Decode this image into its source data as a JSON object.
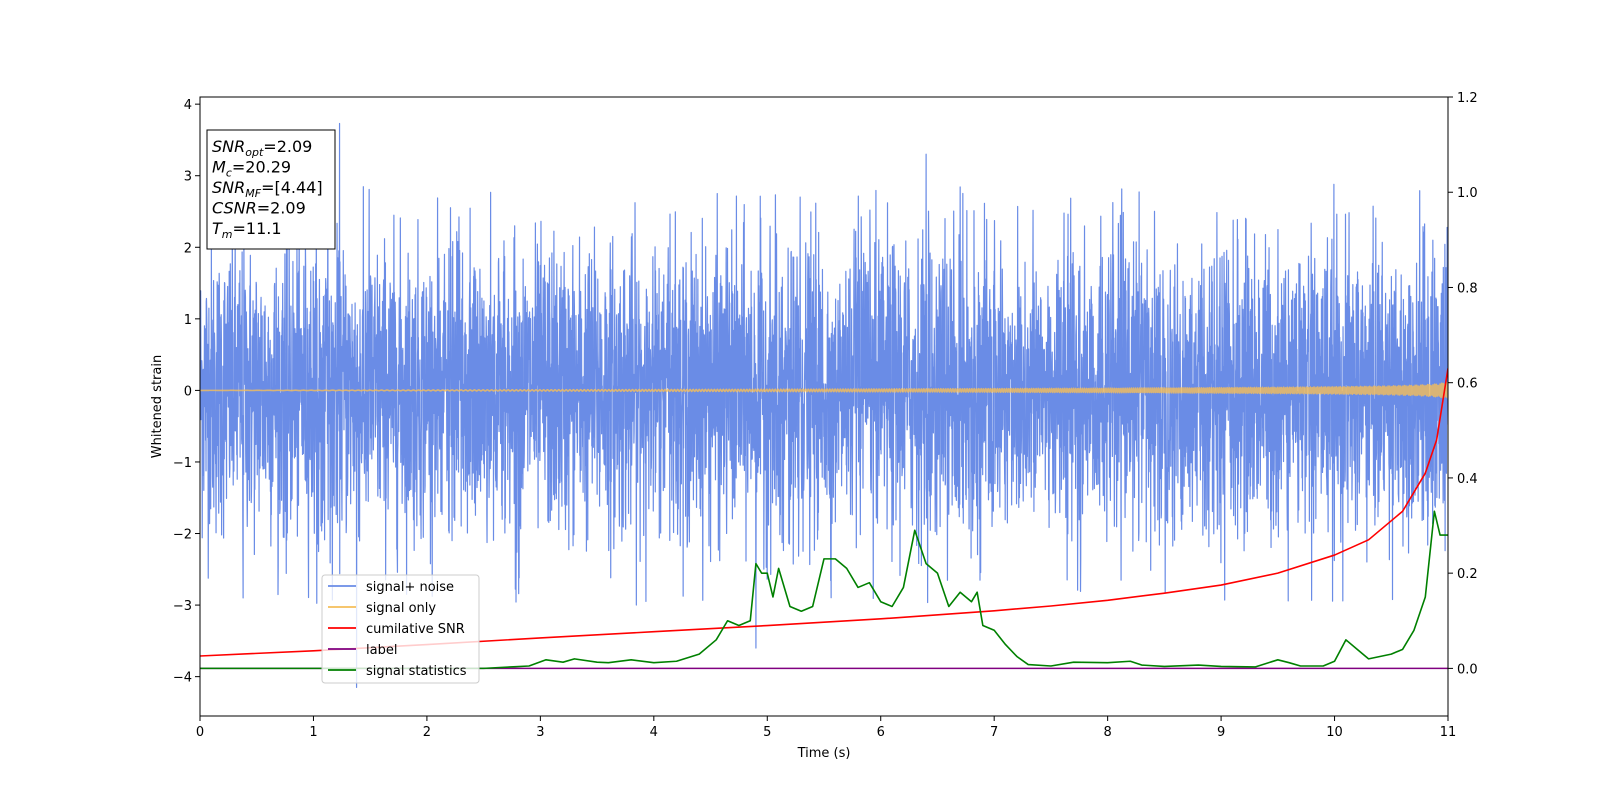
{
  "chart_data": {
    "type": "line",
    "xlabel": "Time (s)",
    "ylabel": "Whitened strain",
    "xlim": [
      0,
      11
    ],
    "ylim": [
      -4.55,
      4.1
    ],
    "y2lim": [
      -0.1,
      1.2
    ],
    "xticks": [
      "0",
      "1",
      "2",
      "3",
      "4",
      "5",
      "6",
      "7",
      "8",
      "9",
      "10",
      "11"
    ],
    "yticks": [
      "−4",
      "−3",
      "−2",
      "−1",
      "0",
      "1",
      "2",
      "3",
      "4"
    ],
    "y2ticks": [
      "0.0",
      "0.2",
      "0.4",
      "0.6",
      "0.8",
      "1.0",
      "1.2"
    ],
    "grid": false,
    "legend_position": "lower-left",
    "annotation": {
      "lines": [
        {
          "sym": "SNR",
          "sub": "opt",
          "value": "=2.09"
        },
        {
          "sym": "M",
          "sub": "c",
          "value": "=20.29"
        },
        {
          "sym": "SNR",
          "sub": "MF",
          "value": "=[4.44]"
        },
        {
          "sym": "CSNR",
          "sub": "",
          "value": "=2.09"
        },
        {
          "sym": "T",
          "sub": "m",
          "value": "=11.1"
        }
      ]
    },
    "series": [
      {
        "name": "signal+ noise",
        "axis": "left",
        "color": "#6a8ce6",
        "kind": "noise",
        "amplitude_sigma": 1.0,
        "extremes": [
          [
            1.23,
            3.73
          ],
          [
            6.4,
            3.3
          ],
          [
            1.38,
            -4.15
          ],
          [
            0.38,
            -2.9
          ],
          [
            4.9,
            -3.6
          ]
        ]
      },
      {
        "name": "signal only",
        "axis": "left",
        "color": "#f5be5a",
        "kind": "chirp",
        "amplitude_at_end": 0.12
      },
      {
        "name": "cumilative SNR",
        "axis": "right",
        "color": "#ff0000",
        "x": [
          0,
          1,
          2,
          3,
          4,
          5,
          6,
          7,
          7.5,
          8,
          8.5,
          9,
          9.5,
          10,
          10.3,
          10.6,
          10.8,
          10.9,
          11
        ],
        "y": [
          0.026,
          0.037,
          0.05,
          0.064,
          0.077,
          0.09,
          0.104,
          0.121,
          0.131,
          0.143,
          0.158,
          0.175,
          0.2,
          0.238,
          0.27,
          0.33,
          0.41,
          0.48,
          0.63
        ]
      },
      {
        "name": "label",
        "axis": "right",
        "color": "#800080",
        "x": [
          0,
          11
        ],
        "y": [
          0.0,
          0.0
        ]
      },
      {
        "name": "signal statistics",
        "axis": "right",
        "color": "#008000",
        "x": [
          0,
          1,
          2,
          2.5,
          2.9,
          3.05,
          3.2,
          3.3,
          3.5,
          3.6,
          3.8,
          4.0,
          4.2,
          4.4,
          4.55,
          4.65,
          4.75,
          4.8,
          4.85,
          4.9,
          4.95,
          5.0,
          5.05,
          5.1,
          5.2,
          5.3,
          5.4,
          5.5,
          5.6,
          5.7,
          5.8,
          5.9,
          6.0,
          6.1,
          6.2,
          6.3,
          6.4,
          6.5,
          6.6,
          6.7,
          6.8,
          6.85,
          6.9,
          7.0,
          7.1,
          7.2,
          7.3,
          7.5,
          7.7,
          8.0,
          8.2,
          8.3,
          8.5,
          8.8,
          9.0,
          9.3,
          9.5,
          9.6,
          9.7,
          9.9,
          10.0,
          10.1,
          10.2,
          10.3,
          10.5,
          10.6,
          10.7,
          10.8,
          10.88,
          10.93,
          11.0
        ],
        "y": [
          0.0,
          0.0,
          0.0,
          0.0,
          0.005,
          0.018,
          0.013,
          0.02,
          0.013,
          0.012,
          0.018,
          0.012,
          0.015,
          0.03,
          0.06,
          0.1,
          0.09,
          0.095,
          0.1,
          0.22,
          0.2,
          0.2,
          0.15,
          0.21,
          0.13,
          0.12,
          0.13,
          0.23,
          0.23,
          0.21,
          0.17,
          0.18,
          0.14,
          0.13,
          0.17,
          0.29,
          0.22,
          0.2,
          0.13,
          0.16,
          0.14,
          0.16,
          0.09,
          0.08,
          0.05,
          0.025,
          0.008,
          0.005,
          0.013,
          0.012,
          0.015,
          0.007,
          0.004,
          0.007,
          0.004,
          0.003,
          0.018,
          0.012,
          0.005,
          0.005,
          0.015,
          0.06,
          0.04,
          0.02,
          0.03,
          0.04,
          0.08,
          0.15,
          0.33,
          0.28,
          0.28
        ]
      }
    ]
  }
}
